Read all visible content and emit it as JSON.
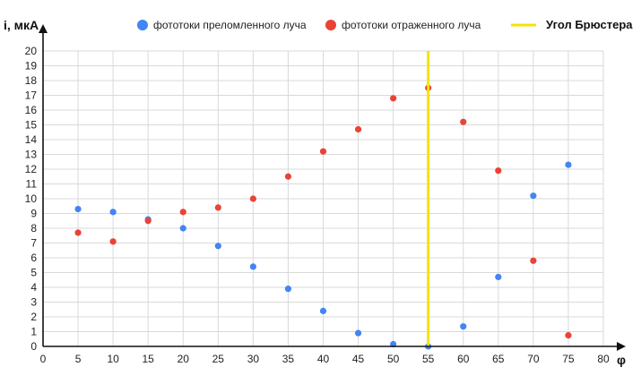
{
  "chart_data": {
    "type": "scatter",
    "ylabel": "i, мкА",
    "xlabel": "φ",
    "xlim": [
      0,
      80
    ],
    "ylim": [
      0,
      20
    ],
    "x_ticks": [
      0,
      5,
      10,
      15,
      20,
      25,
      30,
      35,
      40,
      45,
      50,
      55,
      60,
      65,
      70,
      75,
      80
    ],
    "y_ticks": [
      0,
      1,
      2,
      3,
      4,
      5,
      6,
      7,
      8,
      9,
      10,
      11,
      12,
      13,
      14,
      15,
      16,
      17,
      18,
      19,
      20
    ],
    "grid": true,
    "legend_position": "top",
    "series": [
      {
        "name": "фототоки преломленного луча",
        "color": "#4285f4",
        "points": [
          [
            5,
            9.3
          ],
          [
            10,
            9.1
          ],
          [
            15,
            8.6
          ],
          [
            20,
            8.0
          ],
          [
            25,
            6.8
          ],
          [
            30,
            5.4
          ],
          [
            35,
            3.9
          ],
          [
            40,
            2.4
          ],
          [
            45,
            0.9
          ],
          [
            50,
            0.15
          ],
          [
            55,
            0.0
          ],
          [
            60,
            1.35
          ],
          [
            65,
            4.7
          ],
          [
            70,
            10.2
          ],
          [
            75,
            12.3
          ]
        ]
      },
      {
        "name": "фототоки отраженного луча",
        "color": "#ea4335",
        "points": [
          [
            5,
            7.7
          ],
          [
            10,
            7.1
          ],
          [
            15,
            8.5
          ],
          [
            20,
            9.1
          ],
          [
            25,
            9.4
          ],
          [
            30,
            10.0
          ],
          [
            35,
            11.5
          ],
          [
            40,
            13.2
          ],
          [
            45,
            14.7
          ],
          [
            50,
            16.8
          ],
          [
            55,
            17.5
          ],
          [
            60,
            15.2
          ],
          [
            65,
            11.9
          ],
          [
            70,
            5.8
          ],
          [
            75,
            0.75
          ]
        ]
      }
    ],
    "reference_line": {
      "name": "Угол Брюстера",
      "x": 55,
      "color": "#f4e400"
    }
  }
}
